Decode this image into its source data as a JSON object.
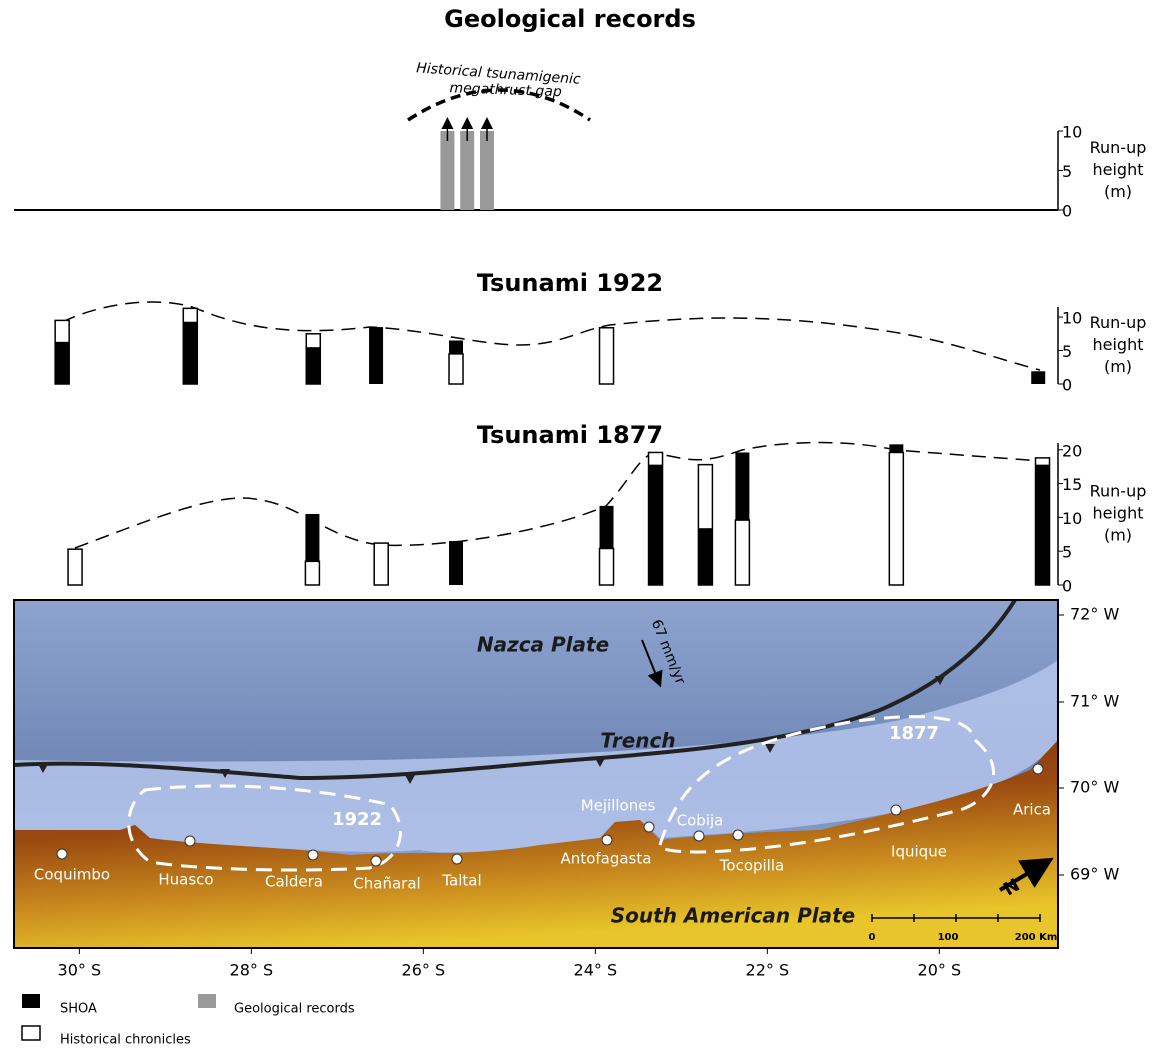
{
  "chart_data": [
    {
      "type": "bar",
      "title": "Geological records",
      "annotation": [
        "Historical tsunamigenic",
        "megathrust gap"
      ],
      "y_label": [
        "Run-up",
        "height",
        "(m)"
      ],
      "x": [
        25.72,
        25.49,
        25.26
      ],
      "series": [
        {
          "name": "Geological records",
          "color": "#999999",
          "values": [
            10,
            10,
            10
          ]
        }
      ],
      "xlim": [
        30.76,
        18.62
      ],
      "ylim": [
        0,
        10
      ],
      "yticks": [
        0,
        5,
        10
      ],
      "baseline": true,
      "open_ended": true
    },
    {
      "type": "bar",
      "title": "Tsunami 1922",
      "y_label": [
        "Run-up",
        "height",
        "(m)"
      ],
      "x": [
        30.2,
        28.71,
        27.28,
        26.55,
        25.62,
        23.87,
        18.85
      ],
      "series": [
        {
          "name": "SHOA",
          "color": "#000000",
          "values": [
            6.3,
            9.3,
            5.5,
            8.5,
            6.5,
            null,
            1.9
          ]
        },
        {
          "name": "Historical chronicles",
          "color": "#ffffff",
          "values": [
            9.5,
            11.3,
            7.5,
            null,
            4.5,
            8.4,
            null
          ]
        }
      ],
      "xlim": [
        30.76,
        18.62
      ],
      "ylim": [
        0,
        11.5
      ],
      "yticks": [
        0,
        5,
        10
      ],
      "baseline": false,
      "open_ended": false
    },
    {
      "type": "bar",
      "title": "Tsunami 1877",
      "y_label": [
        "Run-up",
        "height",
        "(m)"
      ],
      "x": [
        30.05,
        27.29,
        26.49,
        25.62,
        23.87,
        23.3,
        22.72,
        22.29,
        20.5,
        18.8
      ],
      "series": [
        {
          "name": "SHOA",
          "color": "#000000",
          "values": [
            null,
            10.5,
            null,
            6.5,
            11.7,
            17.8,
            8.4,
            19.6,
            20.8,
            17.8
          ]
        },
        {
          "name": "Historical chronicles",
          "color": "#ffffff",
          "values": [
            5.3,
            3.5,
            6.2,
            null,
            5.4,
            19.6,
            17.8,
            9.6,
            19.6,
            18.8
          ]
        }
      ],
      "xlim": [
        30.76,
        18.62
      ],
      "ylim": [
        0,
        21
      ],
      "yticks": [
        0,
        5,
        10,
        15,
        20
      ],
      "baseline": false,
      "open_ended": false
    }
  ],
  "map": {
    "xlim": [
      30.76,
      18.62
    ],
    "xticks": [
      {
        "value": 30,
        "label": "30° S"
      },
      {
        "value": 28,
        "label": "28° S"
      },
      {
        "value": 26,
        "label": "26° S"
      },
      {
        "value": 24,
        "label": "24° S"
      },
      {
        "value": 22,
        "label": "22° S"
      },
      {
        "value": 20,
        "label": "20° S"
      }
    ],
    "lon_labels": [
      "72° W",
      "71° W",
      "70° W",
      "69° W"
    ],
    "nazca": "Nazca Plate",
    "south_american": "South American Plate",
    "trench": "Trench",
    "rate": "67 mm/yr",
    "zone_1922": "1922",
    "zone_1877": "1877",
    "north": "N",
    "scale": [
      "0",
      "100",
      "200 Km"
    ],
    "cities": [
      "Coquimbo",
      "Huasco",
      "Caldera",
      "Chañaral",
      "Taltal",
      "Antofagasta",
      "Mejillones",
      "Cobija",
      "Tocopilla",
      "Iquique",
      "Arica"
    ]
  }
}
